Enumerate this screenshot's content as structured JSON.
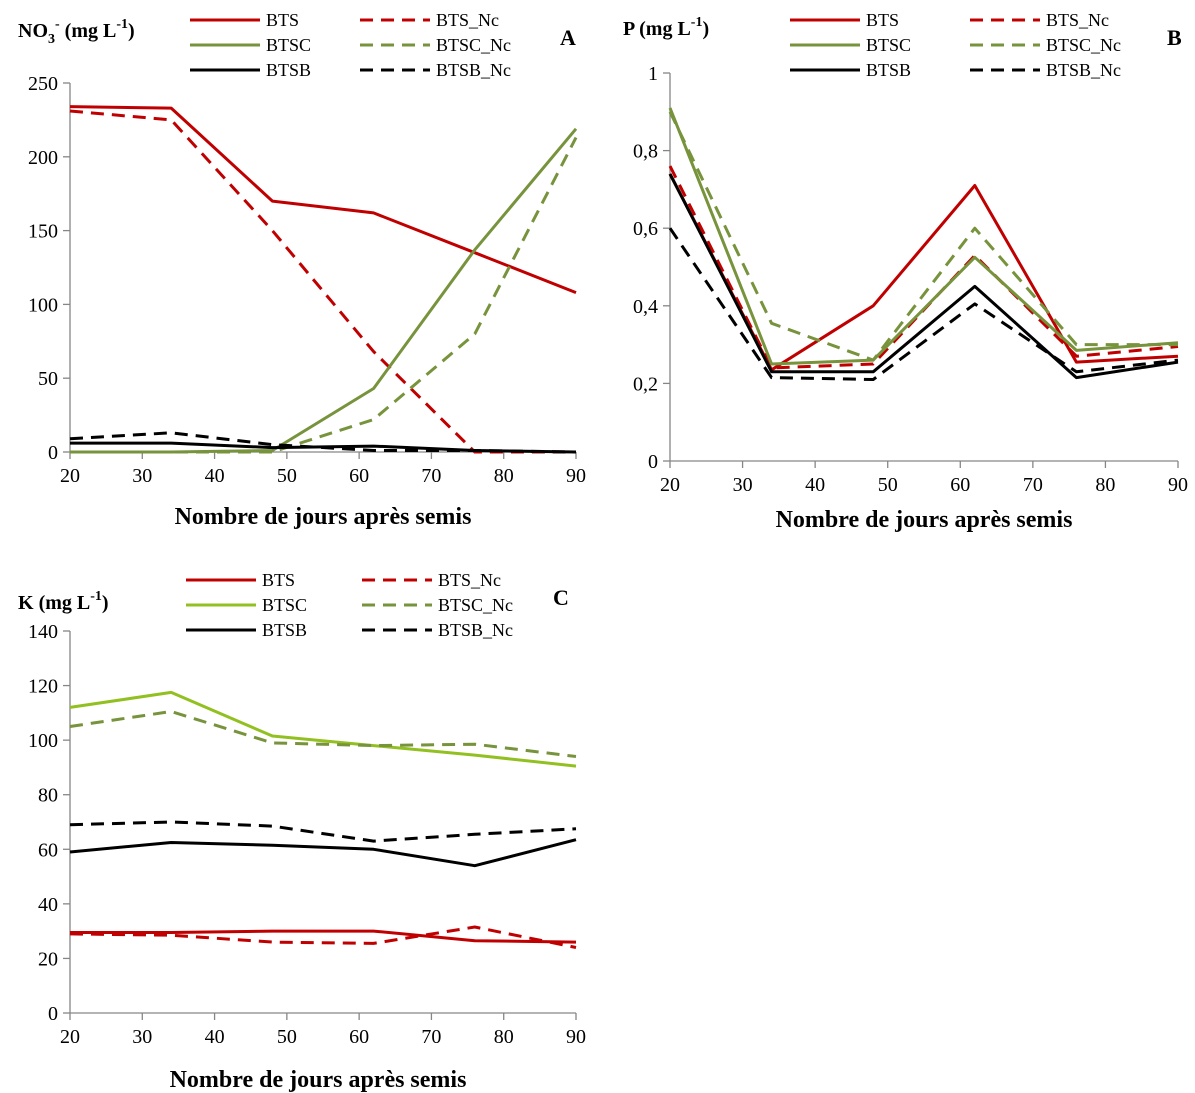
{
  "chart_data": [
    {
      "type": "line",
      "panel_label": "A",
      "unit_label": {
        "main": "NO",
        "sub": "3",
        "sup": "-",
        "tail": " (mg L",
        "tail_sup": "-1",
        "close": ")"
      },
      "xlabel": "Nombre de jours après semis",
      "x_ticks": [
        "20",
        "30",
        "40",
        "50",
        "60",
        "70",
        "80",
        "90"
      ],
      "y_ticks": [
        "0",
        "50",
        "100",
        "150",
        "200",
        "250"
      ],
      "xlim": [
        20,
        90
      ],
      "ylim": [
        0,
        250
      ],
      "x": [
        20,
        34,
        48,
        62,
        76,
        90
      ],
      "legend_position": "top",
      "series": [
        {
          "name": "BTS",
          "color": "#c00000",
          "style": "solid",
          "values": [
            234,
            233,
            170,
            162,
            135,
            108
          ]
        },
        {
          "name": "BTS_Nc",
          "color": "#c00000",
          "style": "dashed",
          "values": [
            231,
            225,
            150,
            68,
            0,
            0
          ]
        },
        {
          "name": "BTSC",
          "color": "#77933c",
          "style": "solid",
          "values": [
            0,
            0,
            1,
            43,
            137,
            219
          ]
        },
        {
          "name": "BTSC_Nc",
          "color": "#77933c",
          "style": "dashed",
          "values": [
            0,
            0,
            0,
            22,
            80,
            213
          ]
        },
        {
          "name": "BTSB",
          "color": "#000000",
          "style": "solid",
          "values": [
            6,
            6,
            3,
            4,
            1,
            0
          ]
        },
        {
          "name": "BTSB_Nc",
          "color": "#000000",
          "style": "dashed",
          "values": [
            9,
            13,
            5,
            1,
            1,
            0
          ]
        }
      ]
    },
    {
      "type": "line",
      "panel_label": "B",
      "unit_label": {
        "main": "P",
        "sub": "",
        "sup": "",
        "tail": " (mg L",
        "tail_sup": "-1",
        "close": ")"
      },
      "xlabel": "Nombre de jours après semis",
      "x_ticks": [
        "20",
        "30",
        "40",
        "50",
        "60",
        "70",
        "80",
        "90"
      ],
      "y_ticks": [
        "0",
        "0,2",
        "0,4",
        "0,6",
        "0,8",
        "1"
      ],
      "xlim": [
        20,
        90
      ],
      "ylim": [
        0,
        1
      ],
      "x": [
        20,
        34,
        48,
        62,
        76,
        90
      ],
      "legend_position": "top",
      "series": [
        {
          "name": "BTS",
          "color": "#c00000",
          "style": "solid",
          "values": [
            0.74,
            0.235,
            0.4,
            0.71,
            0.255,
            0.27
          ]
        },
        {
          "name": "BTS_Nc",
          "color": "#c00000",
          "style": "dashed",
          "values": [
            0.76,
            0.24,
            0.25,
            0.53,
            0.27,
            0.295
          ]
        },
        {
          "name": "BTSC",
          "color": "#77933c",
          "style": "solid",
          "values": [
            0.91,
            0.25,
            0.26,
            0.525,
            0.285,
            0.305
          ]
        },
        {
          "name": "BTSC_Nc",
          "color": "#77933c",
          "style": "dashed",
          "values": [
            0.9,
            0.355,
            0.26,
            0.6,
            0.3,
            0.3
          ]
        },
        {
          "name": "BTSB",
          "color": "#000000",
          "style": "solid",
          "values": [
            0.74,
            0.23,
            0.23,
            0.45,
            0.215,
            0.255
          ]
        },
        {
          "name": "BTSB_Nc",
          "color": "#000000",
          "style": "dashed",
          "values": [
            0.6,
            0.215,
            0.21,
            0.405,
            0.23,
            0.26
          ]
        }
      ]
    },
    {
      "type": "line",
      "panel_label": "C",
      "unit_label": {
        "main": "K",
        "sub": "",
        "sup": "",
        "tail": " (mg L",
        "tail_sup": "-1",
        "close": ")"
      },
      "xlabel": "Nombre de jours après semis",
      "x_ticks": [
        "20",
        "30",
        "40",
        "50",
        "60",
        "70",
        "80",
        "90"
      ],
      "y_ticks": [
        "0",
        "20",
        "40",
        "60",
        "80",
        "100",
        "120",
        "140"
      ],
      "xlim": [
        20,
        90
      ],
      "ylim": [
        0,
        140
      ],
      "x": [
        20,
        34,
        48,
        62,
        76,
        90
      ],
      "legend_position": "top",
      "series": [
        {
          "name": "BTS",
          "color": "#c00000",
          "style": "solid",
          "values": [
            29.5,
            29.5,
            30,
            30,
            26.5,
            26
          ]
        },
        {
          "name": "BTS_Nc",
          "color": "#c00000",
          "style": "dashed",
          "values": [
            29,
            28.5,
            26,
            25.5,
            31.5,
            24
          ]
        },
        {
          "name": "BTSC",
          "color": "#92c020",
          "style": "solid",
          "values": [
            112,
            117.5,
            101.5,
            98,
            94.5,
            90.5
          ]
        },
        {
          "name": "BTSC_Nc",
          "color": "#77933c",
          "style": "dashed",
          "values": [
            105,
            110.5,
            99,
            98,
            98.5,
            94
          ]
        },
        {
          "name": "BTSB",
          "color": "#000000",
          "style": "solid",
          "values": [
            59,
            62.5,
            61.5,
            60,
            54,
            63.5
          ]
        },
        {
          "name": "BTSB_Nc",
          "color": "#000000",
          "style": "dashed",
          "values": [
            69,
            70,
            68.5,
            63,
            65.5,
            67.5
          ]
        }
      ]
    }
  ]
}
